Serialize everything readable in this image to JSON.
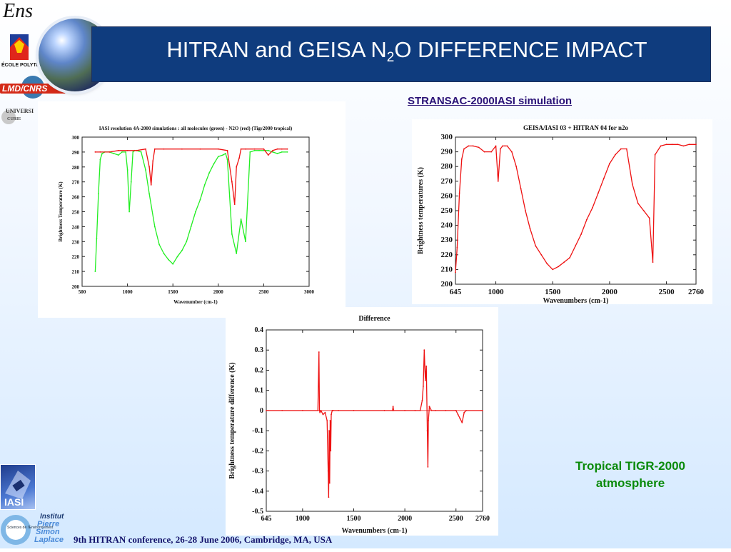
{
  "slide": {
    "title_main": "HITRAN and GEISA N",
    "title_sub": "2",
    "title_tail": "O DIFFERENCE IMPACT",
    "simulation_label": "STRANSAC-2000IASI simulation",
    "atmosphere_line1": "Tropical TIGR-2000",
    "atmosphere_line2": "atmosphere",
    "footer": "9th HITRAN conference, 26-28 June 2006, Cambridge, MA, USA",
    "logos": {
      "ens": "Ens",
      "ecole": "ÉCOLE POLYTECHNIQUE",
      "lmd": "LMD/CNRS",
      "univ": "UNIVERSI",
      "univ2": "CURIE",
      "iasi": "IASI",
      "ipsl_a": "Institut",
      "ipsl_b": "Pierre",
      "ipsl_c": "Simon",
      "ipsl_d": "Laplace",
      "ipsl_e": "Sciences de l'Environnement"
    }
  },
  "colors": {
    "title_bg": "#0f3c7e",
    "red": "#ee1111",
    "green": "#22ee22",
    "sim_label": "#2a1276",
    "atm_label": "#0a8a0a"
  },
  "chart_data": [
    {
      "type": "line",
      "title": "IASI resolution 4A-2000 simulations : all molecules (green) - N2O (red) (Tigr2000 tropical)",
      "xlabel": "Wavenumber (cm-1)",
      "ylabel": "Brightness Temperature (K)",
      "xlim": [
        500,
        3000
      ],
      "ylim": [
        200,
        300
      ],
      "xticks": [
        "500",
        "1000",
        "1500",
        "2000",
        "2500",
        "3000"
      ],
      "yticks": [
        "200",
        "210",
        "220",
        "230",
        "240",
        "250",
        "260",
        "270",
        "280",
        "290",
        "300"
      ],
      "series": [
        {
          "name": "all molecules (green)",
          "color": "#22ee22",
          "x": [
            645,
            660,
            680,
            700,
            720,
            750,
            800,
            850,
            900,
            940,
            980,
            1000,
            1020,
            1040,
            1060,
            1080,
            1100,
            1150,
            1200,
            1240,
            1300,
            1350,
            1400,
            1450,
            1500,
            1550,
            1600,
            1650,
            1700,
            1750,
            1800,
            1850,
            1900,
            1950,
            2000,
            2050,
            2080,
            2100,
            2150,
            2200,
            2250,
            2300,
            2350,
            2400,
            2450,
            2500,
            2550,
            2600,
            2650,
            2700,
            2760
          ],
          "y": [
            210,
            232,
            262,
            285,
            289,
            290,
            290,
            289,
            288,
            290,
            290,
            278,
            250,
            270,
            290,
            291,
            291,
            290,
            278,
            262,
            240,
            228,
            222,
            218,
            215,
            220,
            224,
            230,
            240,
            250,
            258,
            268,
            276,
            282,
            287,
            288,
            289,
            285,
            235,
            222,
            245,
            230,
            290,
            291,
            291,
            291,
            291,
            290,
            289,
            290,
            290
          ]
        },
        {
          "name": "N2O (red)",
          "color": "#ee1111",
          "x": [
            645,
            700,
            800,
            900,
            1000,
            1100,
            1200,
            1240,
            1260,
            1280,
            1300,
            1400,
            1600,
            1800,
            2000,
            2100,
            2150,
            2180,
            2200,
            2230,
            2250,
            2300,
            2400,
            2500,
            2550,
            2600,
            2650,
            2700,
            2760
          ],
          "y": [
            290,
            290,
            290,
            291,
            291,
            291,
            292,
            280,
            268,
            284,
            292,
            292,
            292,
            292,
            292,
            291,
            270,
            255,
            280,
            286,
            292,
            292,
            292,
            292,
            288,
            291,
            292,
            292,
            292
          ]
        }
      ]
    },
    {
      "type": "line",
      "title": "GEISA/IASI 03 + HITRAN 04 for n2o",
      "xlabel": "Wavenumbers (cm-1)",
      "ylabel": "Brightness temperatures (K)",
      "xlim": [
        645,
        2760
      ],
      "ylim": [
        200,
        300
      ],
      "xticks": [
        "645",
        "1000",
        "1500",
        "2000",
        "2500",
        "2760"
      ],
      "yticks": [
        "200",
        "210",
        "220",
        "230",
        "240",
        "250",
        "260",
        "270",
        "280",
        "290",
        "300"
      ],
      "series": [
        {
          "name": "",
          "color": "#ee1111",
          "x": [
            645,
            660,
            680,
            700,
            720,
            760,
            800,
            850,
            900,
            960,
            1000,
            1020,
            1040,
            1060,
            1080,
            1100,
            1140,
            1180,
            1220,
            1260,
            1300,
            1350,
            1400,
            1450,
            1500,
            1550,
            1600,
            1650,
            1700,
            1750,
            1800,
            1850,
            1900,
            1950,
            2000,
            2050,
            2100,
            2150,
            2200,
            2250,
            2300,
            2350,
            2380,
            2400,
            2450,
            2500,
            2550,
            2600,
            2650,
            2700,
            2760
          ],
          "y": [
            208,
            225,
            262,
            285,
            292,
            294,
            294,
            293,
            290,
            290,
            294,
            270,
            292,
            294,
            294,
            294,
            290,
            280,
            265,
            250,
            238,
            226,
            220,
            214,
            210,
            212,
            215,
            218,
            226,
            234,
            244,
            252,
            262,
            272,
            282,
            288,
            292,
            292,
            268,
            255,
            250,
            245,
            215,
            288,
            294,
            295,
            295,
            295,
            294,
            295,
            295
          ]
        }
      ]
    },
    {
      "type": "line",
      "title": "Difference",
      "xlabel": "Wavenumbers (cm-1)",
      "ylabel": "Brightness temperature difference (K)",
      "xlim": [
        645,
        2760
      ],
      "ylim": [
        -0.5,
        0.4
      ],
      "xticks": [
        "645",
        "1000",
        "1500",
        "2000",
        "2500",
        "2760"
      ],
      "yticks": [
        "0.4",
        "0.3",
        "0.2",
        "0.1",
        "0",
        "-0.1",
        "-0.2",
        "-0.3",
        "-0.4",
        "-0.5"
      ],
      "series": [
        {
          "name": "",
          "color": "#ee1111",
          "x": [
            645,
            800,
            1000,
            1150,
            1160,
            1165,
            1170,
            1180,
            1200,
            1220,
            1240,
            1250,
            1255,
            1260,
            1265,
            1270,
            1275,
            1280,
            1290,
            1300,
            1350,
            1500,
            1800,
            1880,
            1885,
            1890,
            2000,
            2100,
            2150,
            2170,
            2180,
            2190,
            2200,
            2210,
            2220,
            2225,
            2230,
            2240,
            2260,
            2300,
            2400,
            2500,
            2520,
            2540,
            2560,
            2580,
            2600,
            2760
          ],
          "y": [
            0,
            0,
            0,
            0,
            0.29,
            0,
            -0.01,
            0.0,
            -0.02,
            -0.01,
            -0.05,
            -0.3,
            -0.43,
            -0.1,
            -0.36,
            -0.05,
            -0.2,
            -0.02,
            0,
            0,
            0,
            0,
            0,
            0,
            0.02,
            0,
            0,
            0,
            0,
            0.05,
            0.12,
            0.3,
            0.15,
            0.22,
            -0.1,
            -0.28,
            -0.05,
            0.02,
            0,
            0,
            0,
            0,
            -0.02,
            -0.04,
            -0.06,
            -0.01,
            0,
            0
          ]
        }
      ]
    }
  ]
}
